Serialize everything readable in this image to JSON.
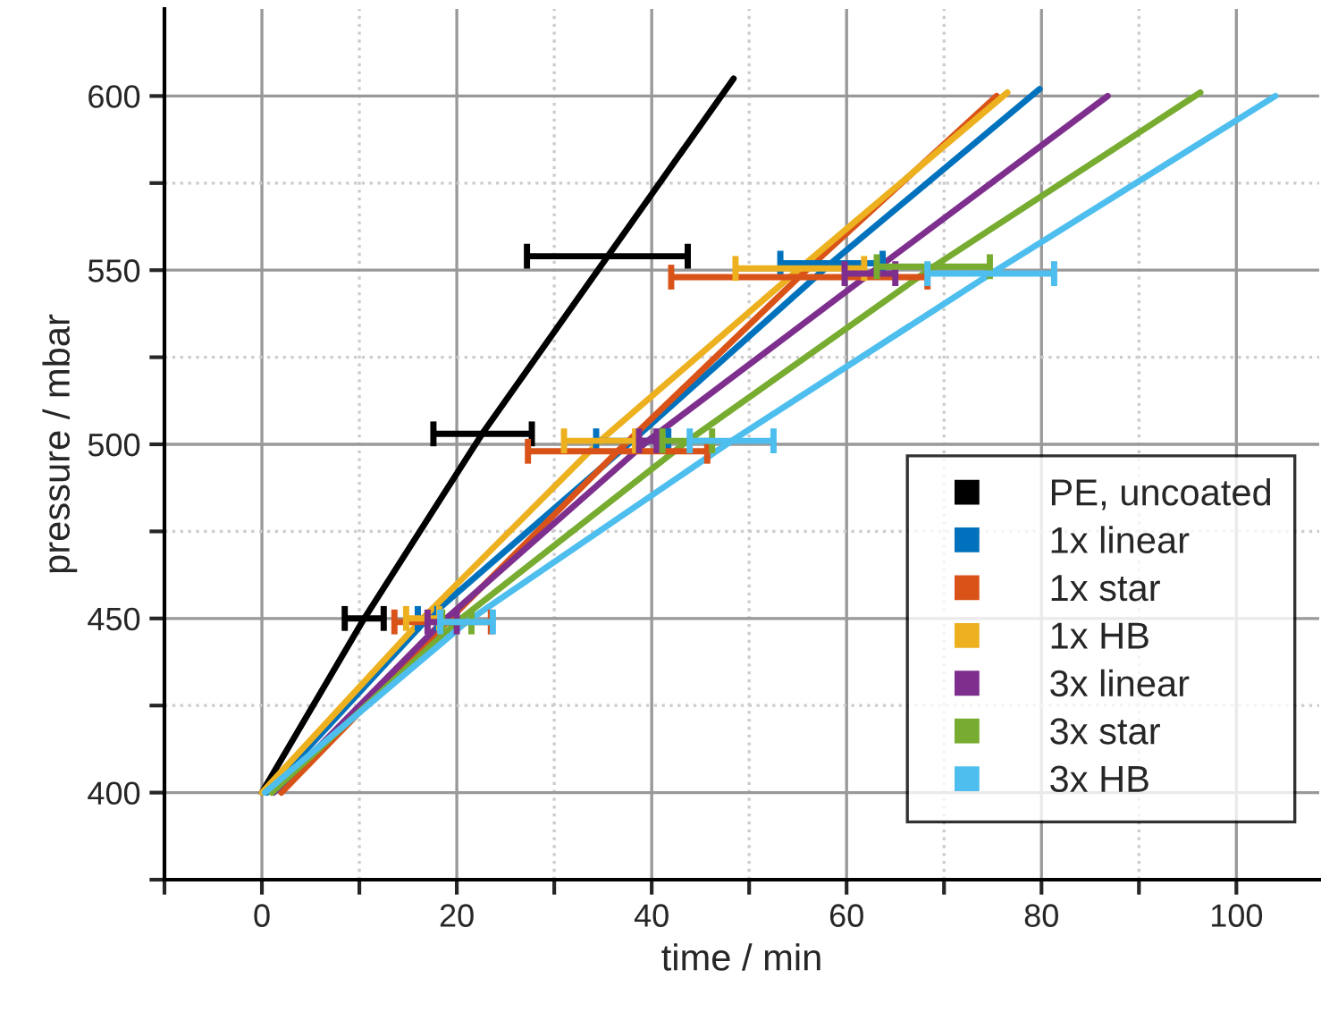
{
  "chart_data": {
    "type": "line",
    "xlabel": "time / min",
    "ylabel": "pressure / mbar",
    "xlim": [
      -10,
      108.5
    ],
    "ylim": [
      375,
      625
    ],
    "xticks": [
      {
        "value": -10,
        "label": null
      },
      0,
      {
        "value": 10,
        "label": null
      },
      20,
      {
        "value": 30,
        "label": null
      },
      40,
      {
        "value": 50,
        "label": null
      },
      60,
      {
        "value": 70,
        "label": null
      },
      80,
      {
        "value": 90,
        "label": null
      },
      100
    ],
    "yticks": [
      {
        "value": 375,
        "label": null
      },
      400,
      {
        "value": 425,
        "label": null
      },
      450,
      {
        "value": 475,
        "label": null
      },
      500,
      {
        "value": 525,
        "label": null
      },
      550,
      {
        "value": 575,
        "label": null
      },
      600
    ],
    "grid": true,
    "legend": "bottom right",
    "marker": "none",
    "line_style": "solid",
    "series": [
      {
        "name": "PE, uncoated",
        "color": "#000000",
        "x": [
          0,
          10.5,
          22.6,
          35.5,
          48.4
        ],
        "values": [
          400,
          450,
          503,
          554,
          605
        ],
        "xerrors": [
          null,
          [
            8.5,
            12.5
          ],
          [
            17.6,
            27.7
          ],
          [
            27.2,
            43.7
          ],
          null
        ]
      },
      {
        "name": "1x linear",
        "color": "#0072bd",
        "x": [
          0.5,
          17,
          38,
          58.4,
          79.8
        ],
        "values": [
          400,
          450,
          501,
          552,
          602
        ],
        "xerrors": [
          null,
          [
            16,
            18
          ],
          [
            34.3,
            41.7
          ],
          [
            53.2,
            63.7
          ],
          null
        ]
      },
      {
        "name": "1x star",
        "color": "#d95319",
        "x": [
          2,
          19,
          36.5,
          55.1,
          75.4
        ],
        "values": [
          400,
          449,
          498,
          548,
          600
        ],
        "xerrors": [
          null,
          [
            13.6,
            23.5
          ],
          [
            27.3,
            45.7
          ],
          [
            42,
            68.3
          ],
          null
        ]
      },
      {
        "name": "1x HB",
        "color": "#edb120",
        "x": [
          0,
          16.5,
          34.7,
          55.2,
          76.5
        ],
        "values": [
          400,
          450,
          501,
          550.5,
          601
        ],
        "xerrors": [
          null,
          [
            14.8,
            18.2
          ],
          [
            31,
            38.3
          ],
          [
            48.6,
            61.8
          ],
          null
        ]
      },
      {
        "name": "3x linear",
        "color": "#7e2f8e",
        "x": [
          1.2,
          18.5,
          39.6,
          62.4,
          86.8
        ],
        "values": [
          400,
          449,
          501,
          549,
          600
        ],
        "xerrors": [
          null,
          [
            17,
            20
          ],
          [
            38.7,
            40.5
          ],
          [
            59.8,
            65
          ],
          null
        ]
      },
      {
        "name": "3x star",
        "color": "#77ac30",
        "x": [
          1,
          20,
          43.7,
          68.9,
          96.3
        ],
        "values": [
          400,
          449,
          501,
          551,
          601
        ],
        "xerrors": [
          null,
          [
            18.5,
            21.5
          ],
          [
            41.1,
            46.2
          ],
          [
            63.1,
            74.7
          ],
          null
        ]
      },
      {
        "name": "3x HB",
        "color": "#4dbeee",
        "x": [
          0.3,
          21,
          48.2,
          74.8,
          104
        ],
        "values": [
          400,
          449,
          501,
          549,
          600
        ],
        "xerrors": [
          null,
          [
            18.3,
            23.7
          ],
          [
            43.9,
            52.5
          ],
          [
            68.3,
            81.3
          ],
          null
        ]
      }
    ]
  }
}
